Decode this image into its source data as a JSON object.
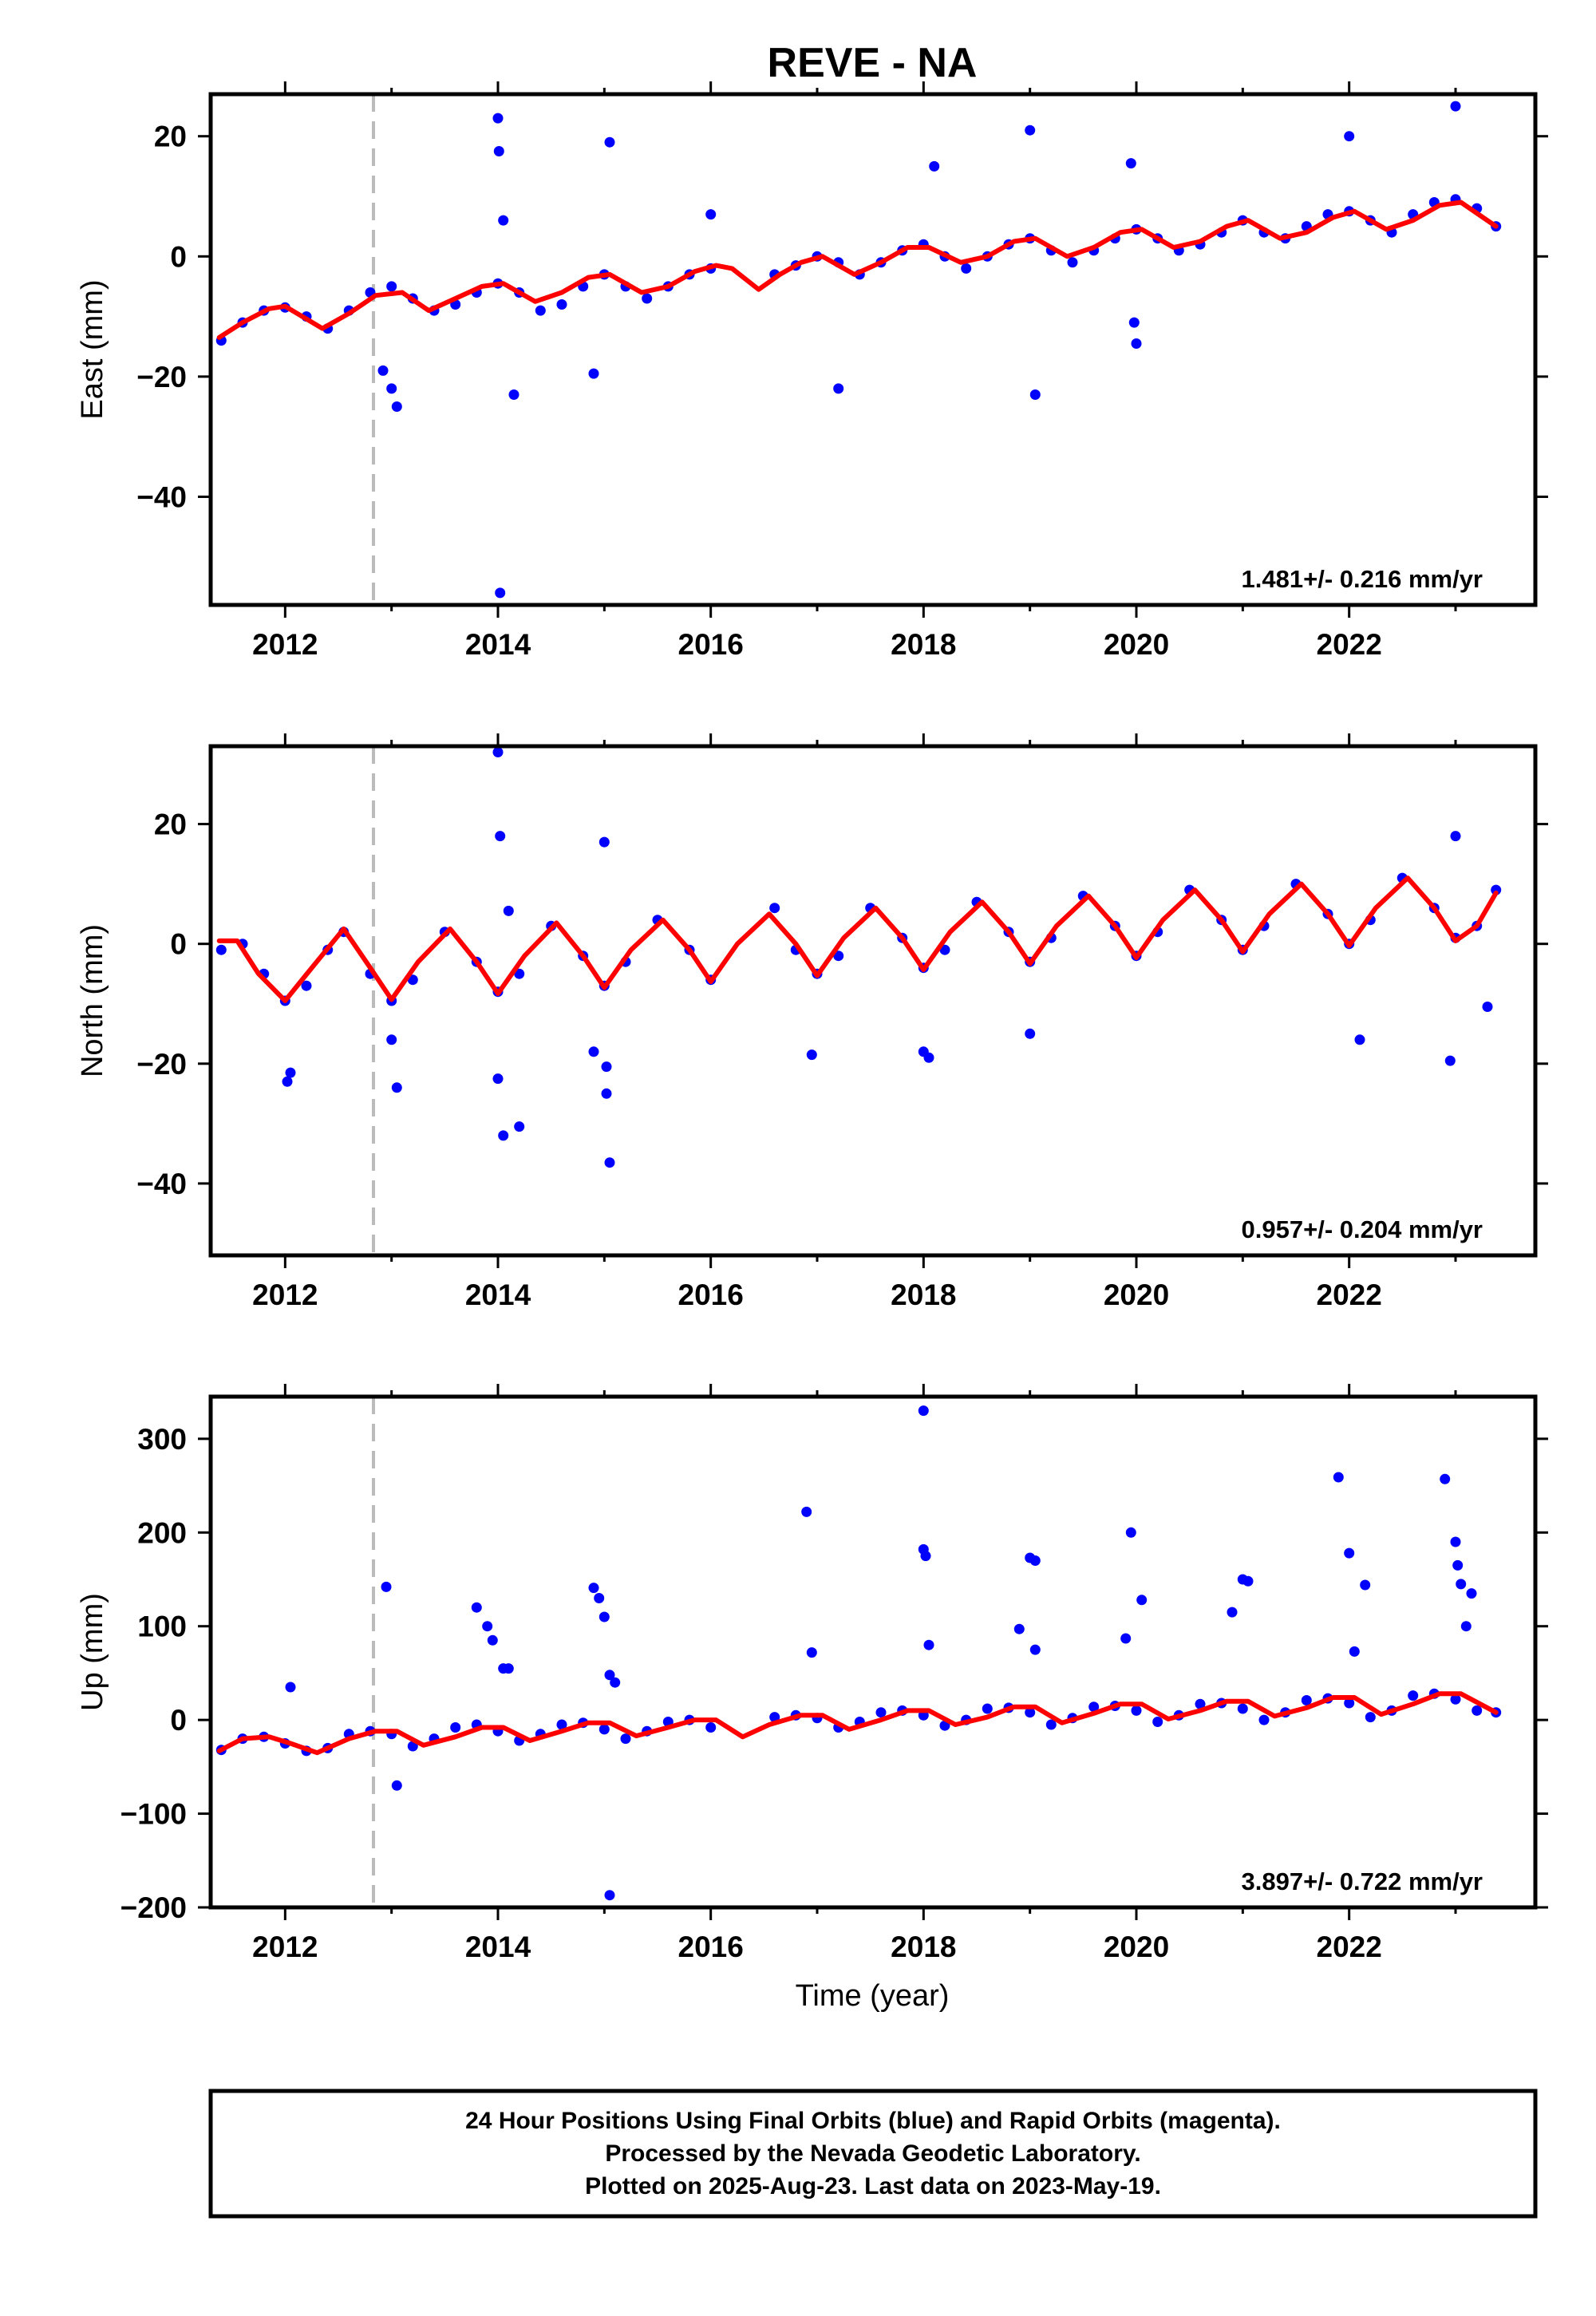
{
  "title": "REVE - NA",
  "xlabel": "Time (year)",
  "x_ticks": [
    2012,
    2014,
    2016,
    2018,
    2020,
    2022
  ],
  "footer": {
    "line1": "24 Hour Positions Using Final Orbits (blue) and Rapid Orbits (magenta).",
    "line2": "Processed by the Nevada Geodetic Laboratory.",
    "line3": "Plotted on 2025-Aug-23. Last data on 2023-May-19."
  },
  "colors": {
    "observations": "#0000ff",
    "model": "#ff0000",
    "event_line": "#bbbbbb"
  },
  "chart_data": [
    {
      "type": "scatter",
      "panel": "east",
      "ylabel": "East (mm)",
      "xlim": [
        2011.3,
        2023.75
      ],
      "ylim": [
        -58,
        27
      ],
      "y_ticks": [
        20,
        0,
        -20,
        -40
      ],
      "rate_text": "1.481+/- 0.216 mm/yr",
      "event_line_x": 2012.83,
      "series": [
        {
          "type": "scatter",
          "x": [
            2011.4,
            2011.6,
            2011.8,
            2012.0,
            2012.2,
            2012.4,
            2012.6,
            2012.8,
            2013.0,
            2013.2,
            2013.4,
            2013.6,
            2013.8,
            2014.0,
            2014.2,
            2014.4,
            2014.6,
            2014.8,
            2015.0,
            2015.2,
            2015.4,
            2015.6,
            2015.8,
            2016.0,
            2016.6,
            2016.8,
            2017.0,
            2017.2,
            2017.4,
            2017.6,
            2017.8,
            2018.0,
            2018.2,
            2018.4,
            2018.6,
            2018.8,
            2019.0,
            2019.2,
            2019.4,
            2019.6,
            2019.8,
            2020.0,
            2020.2,
            2020.4,
            2020.6,
            2020.8,
            2021.0,
            2021.2,
            2021.4,
            2021.6,
            2021.8,
            2022.0,
            2022.2,
            2022.4,
            2022.6,
            2022.8,
            2023.0,
            2023.2,
            2023.38
          ],
          "y": [
            -14,
            -11,
            -9,
            -8.5,
            -10,
            -12,
            -9,
            -6,
            -5,
            -7,
            -9,
            -8,
            -6,
            -4.5,
            -6,
            -9,
            -8,
            -5,
            -3,
            -5,
            -7,
            -5,
            -3,
            -2,
            -3,
            -1.5,
            0,
            -1,
            -3,
            -1,
            1,
            2,
            0,
            -2,
            0,
            2,
            3,
            1,
            -1,
            1,
            3,
            4.5,
            3,
            1,
            2,
            4,
            6,
            4,
            3,
            5,
            7,
            7.5,
            6,
            4,
            7,
            9,
            9.5,
            8,
            5
          ],
          "color": "#0000ff"
        },
        {
          "type": "scatter",
          "x": [
            2012.92,
            2013.05,
            2013.0,
            2014.0,
            2014.01,
            2014.02,
            2014.15,
            2014.05,
            2014.9,
            2015.05,
            2016.0,
            2017.2,
            2018.1,
            2019.0,
            2019.05,
            2019.95,
            2019.98,
            2020.0,
            2022.0,
            2023.0
          ],
          "y": [
            -19,
            -25,
            -22,
            23,
            17.5,
            -56,
            -23,
            6,
            -19.5,
            19,
            7,
            -22,
            15,
            21,
            -23,
            15.5,
            -11,
            -14.5,
            20,
            25
          ],
          "color": "#0000ff"
        },
        {
          "type": "line",
          "name": "",
          "x": [
            2011.38,
            2011.6,
            2011.85,
            2012.0,
            2012.35,
            2012.6,
            2012.85,
            2013.1,
            2013.35,
            2013.6,
            2013.85,
            2014.05,
            2014.35,
            2014.6,
            2014.85,
            2015.05,
            2015.35,
            2015.6,
            2015.85,
            2016.05,
            2016.2,
            2016.45,
            2016.65,
            2016.85,
            2017.05,
            2017.35,
            2017.6,
            2017.85,
            2018.05,
            2018.35,
            2018.6,
            2018.85,
            2019.05,
            2019.35,
            2019.6,
            2019.85,
            2020.05,
            2020.35,
            2020.6,
            2020.85,
            2021.05,
            2021.35,
            2021.6,
            2021.85,
            2022.05,
            2022.35,
            2022.6,
            2022.85,
            2023.05,
            2023.38
          ],
          "y": [
            -13.5,
            -11,
            -8.7,
            -8.3,
            -12,
            -9.5,
            -6.5,
            -6,
            -9,
            -7,
            -5,
            -4.5,
            -7.5,
            -6,
            -3.5,
            -3,
            -6,
            -5,
            -2.5,
            -1.5,
            -2,
            -5.5,
            -3,
            -1,
            0,
            -3,
            -1,
            1.5,
            1.5,
            -1,
            0,
            2.5,
            3,
            0,
            1.5,
            4,
            4.5,
            1.5,
            2.5,
            5,
            6,
            3,
            4,
            6.5,
            7.5,
            4.5,
            6,
            8.5,
            9,
            5
          ],
          "color": "#ff0000"
        }
      ]
    },
    {
      "type": "scatter",
      "panel": "north",
      "ylabel": "North (mm)",
      "xlim": [
        2011.3,
        2023.75
      ],
      "ylim": [
        -52,
        33
      ],
      "y_ticks": [
        20,
        0,
        -20,
        -40
      ],
      "rate_text": "0.957+/- 0.204 mm/yr",
      "event_line_x": 2012.83,
      "series": [
        {
          "type": "scatter",
          "x": [
            2011.4,
            2011.6,
            2011.8,
            2012.0,
            2012.2,
            2012.4,
            2012.55,
            2012.8,
            2013.0,
            2013.2,
            2013.5,
            2013.8,
            2014.0,
            2014.2,
            2014.5,
            2014.8,
            2015.0,
            2015.2,
            2015.5,
            2015.8,
            2016.0,
            2016.6,
            2016.8,
            2017.0,
            2017.2,
            2017.5,
            2017.8,
            2018.0,
            2018.2,
            2018.5,
            2018.8,
            2019.0,
            2019.2,
            2019.5,
            2019.8,
            2020.0,
            2020.2,
            2020.5,
            2020.8,
            2021.0,
            2021.2,
            2021.5,
            2021.8,
            2022.0,
            2022.2,
            2022.5,
            2022.8,
            2023.0,
            2023.2,
            2023.38
          ],
          "y": [
            -1,
            0,
            -5,
            -9.5,
            -7,
            -1,
            2,
            -5,
            -9.5,
            -6,
            2,
            -3,
            -8,
            -5,
            3,
            -2,
            -7,
            -3,
            4,
            -1,
            -6,
            6,
            -1,
            -5,
            -2,
            6,
            1,
            -4,
            -1,
            7,
            2,
            -3,
            1,
            8,
            3,
            -2,
            2,
            9,
            4,
            -1,
            3,
            10,
            5,
            0,
            4,
            11,
            6,
            1,
            3,
            9
          ],
          "color": "#0000ff"
        },
        {
          "type": "scatter",
          "x": [
            2012.05,
            2012.02,
            2013.0,
            2013.05,
            2014.0,
            2014.02,
            2014.0,
            2014.05,
            2014.1,
            2014.2,
            2014.9,
            2015.0,
            2015.02,
            2015.05,
            2015.02,
            2016.95,
            2018.0,
            2018.05,
            2019.0,
            2022.1,
            2022.95,
            2023.0,
            2023.3
          ],
          "y": [
            -21.5,
            -23,
            -16,
            -24,
            32,
            18,
            -22.5,
            -32,
            5.5,
            -30.5,
            -18,
            17,
            -20.5,
            -36.5,
            -25,
            -18.5,
            -18,
            -19,
            -15,
            -16,
            -19.5,
            18,
            -10.5
          ],
          "color": "#0000ff"
        },
        {
          "type": "line",
          "name": "",
          "x": [
            2011.38,
            2011.55,
            2011.75,
            2012.0,
            2012.25,
            2012.55,
            2012.8,
            2013.0,
            2013.25,
            2013.55,
            2013.8,
            2014.0,
            2014.25,
            2014.55,
            2014.8,
            2015.0,
            2015.25,
            2015.55,
            2015.8,
            2016.0,
            2016.25,
            2016.55,
            2016.8,
            2017.0,
            2017.25,
            2017.55,
            2017.8,
            2018.0,
            2018.25,
            2018.55,
            2018.8,
            2019.0,
            2019.25,
            2019.55,
            2019.8,
            2020.0,
            2020.25,
            2020.55,
            2020.8,
            2021.0,
            2021.25,
            2021.55,
            2021.8,
            2022.0,
            2022.25,
            2022.55,
            2022.8,
            2023.0,
            2023.2,
            2023.38
          ],
          "y": [
            0.5,
            0.5,
            -5,
            -9.5,
            -4,
            2.5,
            -4,
            -9.3,
            -3,
            2.5,
            -3,
            -8.3,
            -2,
            3.5,
            -2,
            -7.3,
            -1,
            4,
            -1,
            -6.3,
            0,
            5,
            0,
            -5.3,
            1,
            6,
            1,
            -4.3,
            2,
            7,
            2,
            -3.3,
            3,
            8,
            3,
            -2.3,
            4,
            9,
            4,
            -1.3,
            5,
            10,
            5,
            -0.3,
            6,
            11,
            6,
            0.5,
            3,
            8.5
          ],
          "color": "#ff0000"
        }
      ]
    },
    {
      "type": "scatter",
      "panel": "up",
      "ylabel": "Up (mm)",
      "xlim": [
        2011.3,
        2023.75
      ],
      "ylim": [
        -200,
        345
      ],
      "y_ticks": [
        300,
        200,
        100,
        0,
        -100,
        -200
      ],
      "rate_text": "3.897+/- 0.722 mm/yr",
      "event_line_x": 2012.83,
      "series": [
        {
          "type": "scatter",
          "x": [
            2011.4,
            2011.6,
            2011.8,
            2012.0,
            2012.2,
            2012.4,
            2012.6,
            2012.8,
            2013.0,
            2013.2,
            2013.4,
            2013.6,
            2013.8,
            2014.0,
            2014.2,
            2014.4,
            2014.6,
            2014.8,
            2015.0,
            2015.2,
            2015.4,
            2015.6,
            2015.8,
            2016.0,
            2016.6,
            2016.8,
            2017.0,
            2017.2,
            2017.4,
            2017.6,
            2017.8,
            2018.0,
            2018.2,
            2018.4,
            2018.6,
            2018.8,
            2019.0,
            2019.2,
            2019.4,
            2019.6,
            2019.8,
            2020.0,
            2020.2,
            2020.4,
            2020.6,
            2020.8,
            2021.0,
            2021.2,
            2021.4,
            2021.6,
            2021.8,
            2022.0,
            2022.2,
            2022.4,
            2022.6,
            2022.8,
            2023.0,
            2023.2,
            2023.38
          ],
          "y": [
            -32,
            -20,
            -18,
            -25,
            -33,
            -30,
            -15,
            -12,
            -15,
            -28,
            -20,
            -8,
            -5,
            -12,
            -22,
            -15,
            -5,
            -3,
            -10,
            -20,
            -12,
            -2,
            0,
            -8,
            3,
            5,
            2,
            -8,
            -2,
            8,
            10,
            5,
            -6,
            0,
            12,
            13,
            8,
            -5,
            2,
            14,
            15,
            10,
            -2,
            5,
            17,
            18,
            12,
            0,
            8,
            21,
            23,
            18,
            3,
            10,
            26,
            28,
            22,
            10,
            8
          ],
          "color": "#0000ff"
        },
        {
          "type": "scatter",
          "x": [
            2012.05,
            2012.95,
            2013.05,
            2013.8,
            2013.9,
            2013.95,
            2014.05,
            2014.1,
            2014.9,
            2014.95,
            2015.0,
            2015.05,
            2015.1,
            2015.05,
            2016.9,
            2016.95,
            2018.0,
            2018.0,
            2018.02,
            2018.05,
            2018.9,
            2019.0,
            2019.05,
            2019.05,
            2019.95,
            2019.9,
            2020.05,
            2020.9,
            2021.0,
            2021.05,
            2021.9,
            2022.0,
            2022.05,
            2022.15,
            2022.9,
            2023.0,
            2023.02,
            2023.05,
            2023.1,
            2023.15
          ],
          "y": [
            35,
            142,
            -70,
            120,
            100,
            85,
            55,
            55,
            141,
            130,
            110,
            48,
            40,
            -187,
            222,
            72,
            330,
            182,
            175,
            80,
            97,
            173,
            170,
            75,
            200,
            87,
            128,
            115,
            150,
            148,
            259,
            178,
            73,
            144,
            257,
            190,
            165,
            145,
            100,
            135
          ],
          "color": "#0000ff"
        },
        {
          "type": "line",
          "name": "",
          "x": [
            2011.38,
            2011.6,
            2011.85,
            2012.05,
            2012.3,
            2012.6,
            2012.85,
            2013.05,
            2013.3,
            2013.6,
            2013.85,
            2014.05,
            2014.3,
            2014.6,
            2014.85,
            2015.05,
            2015.3,
            2015.6,
            2015.85,
            2016.05,
            2016.3,
            2016.55,
            2016.85,
            2017.05,
            2017.3,
            2017.6,
            2017.85,
            2018.05,
            2018.3,
            2018.6,
            2018.85,
            2019.05,
            2019.3,
            2019.6,
            2019.85,
            2020.05,
            2020.3,
            2020.6,
            2020.85,
            2021.05,
            2021.3,
            2021.6,
            2021.85,
            2022.05,
            2022.3,
            2022.6,
            2022.85,
            2023.05,
            2023.38
          ],
          "y": [
            -33,
            -20,
            -18,
            -25,
            -35,
            -20,
            -12,
            -12,
            -27,
            -18,
            -8,
            -8,
            -22,
            -12,
            -3,
            -3,
            -17,
            -8,
            0,
            0,
            -18,
            -5,
            5,
            5,
            -10,
            0,
            10,
            10,
            -5,
            3,
            14,
            14,
            -3,
            7,
            17,
            17,
            1,
            10,
            20,
            20,
            4,
            13,
            24,
            24,
            6,
            17,
            28,
            28,
            8
          ],
          "color": "#ff0000"
        }
      ]
    }
  ]
}
